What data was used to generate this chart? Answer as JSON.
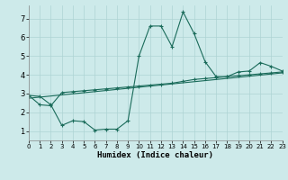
{
  "xlabel": "Humidex (Indice chaleur)",
  "bg_color": "#cdeaea",
  "line_color": "#1a6b5a",
  "grid_color": "#aed4d4",
  "xlim": [
    0,
    23
  ],
  "ylim": [
    0.5,
    7.7
  ],
  "xticks": [
    0,
    1,
    2,
    3,
    4,
    5,
    6,
    7,
    8,
    9,
    10,
    11,
    12,
    13,
    14,
    15,
    16,
    17,
    18,
    19,
    20,
    21,
    22,
    23
  ],
  "yticks": [
    1,
    2,
    3,
    4,
    5,
    6,
    7
  ],
  "curve1_x": [
    0,
    1,
    2,
    3,
    4,
    5,
    6,
    7,
    8,
    9,
    10,
    11,
    12,
    13,
    14,
    15,
    16,
    17,
    18,
    19,
    20,
    21,
    22,
    23
  ],
  "curve1_y": [
    2.9,
    2.85,
    2.4,
    1.3,
    1.55,
    1.5,
    1.05,
    1.1,
    1.1,
    1.55,
    5.0,
    6.6,
    6.6,
    5.5,
    7.35,
    6.2,
    4.7,
    3.9,
    3.9,
    4.15,
    4.2,
    4.65,
    4.45,
    4.2
  ],
  "curve2_x": [
    0,
    1,
    2,
    3,
    4,
    5,
    6,
    7,
    8,
    9,
    10,
    11,
    12,
    13,
    14,
    15,
    16,
    17,
    18,
    19,
    20,
    21,
    22,
    23
  ],
  "curve2_y": [
    2.9,
    2.4,
    2.35,
    3.05,
    3.1,
    3.15,
    3.2,
    3.25,
    3.3,
    3.35,
    3.4,
    3.45,
    3.5,
    3.55,
    3.65,
    3.75,
    3.8,
    3.85,
    3.9,
    3.95,
    4.0,
    4.05,
    4.1,
    4.15
  ],
  "curve3_x": [
    0,
    23
  ],
  "curve3_y": [
    2.75,
    4.1
  ]
}
